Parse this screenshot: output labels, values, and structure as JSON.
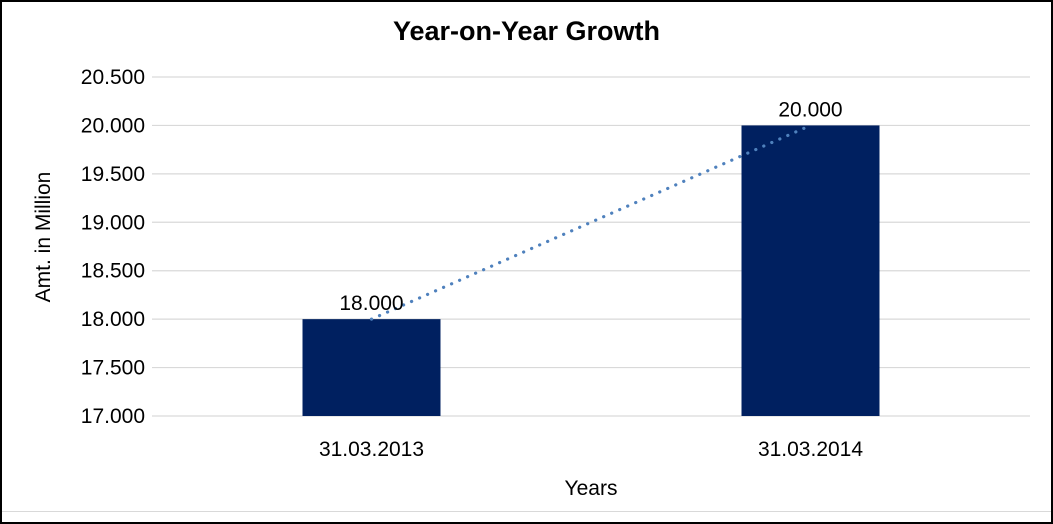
{
  "frame": {
    "background": "#FFFFFF",
    "border_color": "#000000"
  },
  "chart_data": {
    "type": "bar",
    "title": "Year-on-Year Growth",
    "xlabel": "Years",
    "ylabel": "Amt. in Million",
    "categories": [
      "31.03.2013",
      "31.03.2014"
    ],
    "values": [
      18.0,
      20.0
    ],
    "data_labels": [
      "18.000",
      "20.000"
    ],
    "y_ticks": [
      "17.000",
      "17.500",
      "18.000",
      "18.500",
      "19.000",
      "19.500",
      "20.000",
      "20.500"
    ],
    "y_tick_values": [
      17.0,
      17.5,
      18.0,
      18.5,
      19.0,
      19.5,
      20.0,
      20.5
    ],
    "ylim": [
      17.0,
      20.5
    ],
    "grid": true,
    "legend": "none",
    "bar_color": "#002060",
    "gridline_color": "#D9D9D9",
    "text_color": "#000000",
    "trendline": {
      "style": "dotted",
      "color": "#4F81BD",
      "from_value": 18.0,
      "to_value": 20.0
    }
  }
}
